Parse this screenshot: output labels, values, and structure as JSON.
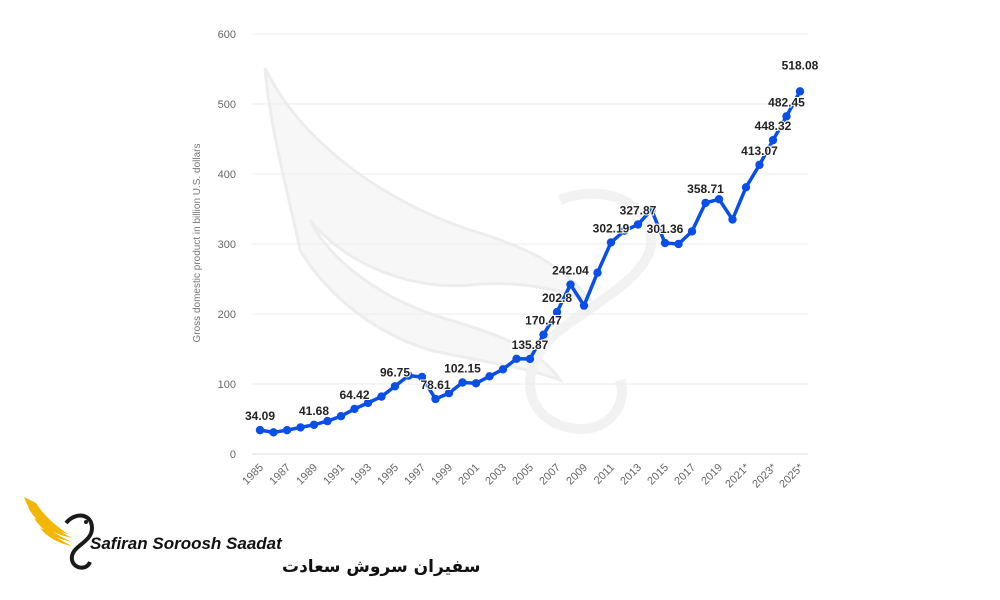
{
  "chart_data": {
    "type": "line",
    "ylabel": "Gross domestic product in billion U.S. dollars",
    "ylim": [
      0,
      600
    ],
    "yticks": [
      "0",
      "100",
      "200",
      "300",
      "400",
      "500",
      "600"
    ],
    "xtick_labels": [
      "1985",
      "1987",
      "1989",
      "1991",
      "1993",
      "1995",
      "1997",
      "1999",
      "2001",
      "2003",
      "2005",
      "2007",
      "2009",
      "2011",
      "2013",
      "2015",
      "2017",
      "2019",
      "2021*",
      "2023*",
      "2025*"
    ],
    "grid": "horizontal",
    "color": "#0a4ee8",
    "series": [
      {
        "x": [
          "1985",
          "1986",
          "1987",
          "1988",
          "1989",
          "1990",
          "1991",
          "1992",
          "1993",
          "1994",
          "1995",
          "1996",
          "1997",
          "1998",
          "1999",
          "2000",
          "2001",
          "2002",
          "2003",
          "2004",
          "2005",
          "2006",
          "2007",
          "2008",
          "2009",
          "2010",
          "2011",
          "2012",
          "2013",
          "2014",
          "2015",
          "2016",
          "2017",
          "2018",
          "2019",
          "2020",
          "2021*",
          "2022*",
          "2023*",
          "2024*",
          "2025*"
        ],
        "values": [
          34.09,
          31,
          34,
          38,
          41.68,
          47,
          54,
          64.42,
          73,
          82,
          96.75,
          112,
          110,
          78.61,
          87,
          102.15,
          101,
          111,
          121,
          136,
          135.87,
          170.47,
          202.8,
          242.04,
          212,
          259,
          302.19,
          319,
          327.87,
          349,
          301.36,
          300,
          318,
          358.71,
          364,
          335,
          381,
          413.07,
          448.32,
          482.45,
          518.08
        ]
      }
    ],
    "data_labels": [
      {
        "x": "1985",
        "text": "34.09"
      },
      {
        "x": "1989",
        "text": "41.68"
      },
      {
        "x": "1992",
        "text": "64.42"
      },
      {
        "x": "1995",
        "text": "96.75"
      },
      {
        "x": "1998",
        "text": "78.61"
      },
      {
        "x": "2000",
        "text": "102.15"
      },
      {
        "x": "2005",
        "text": "135.87"
      },
      {
        "x": "2006",
        "text": "170.47"
      },
      {
        "x": "2007",
        "text": "202.8"
      },
      {
        "x": "2008",
        "text": "242.04"
      },
      {
        "x": "2011",
        "text": "302.19"
      },
      {
        "x": "2013",
        "text": "327.87"
      },
      {
        "x": "2015",
        "text": "301.36"
      },
      {
        "x": "2018",
        "text": "358.71"
      },
      {
        "x": "2022*",
        "text": "413.07"
      },
      {
        "x": "2023*",
        "text": "448.32"
      },
      {
        "x": "2024*",
        "text": "482.45"
      },
      {
        "x": "2025*",
        "text": "518.08"
      }
    ]
  },
  "brand": {
    "name_en": "Safiran Soroosh Saadat",
    "name_fa": "سفیران سروش سعادت",
    "colors": {
      "gold": "#f2b705",
      "dark": "#1a1a1a"
    }
  }
}
